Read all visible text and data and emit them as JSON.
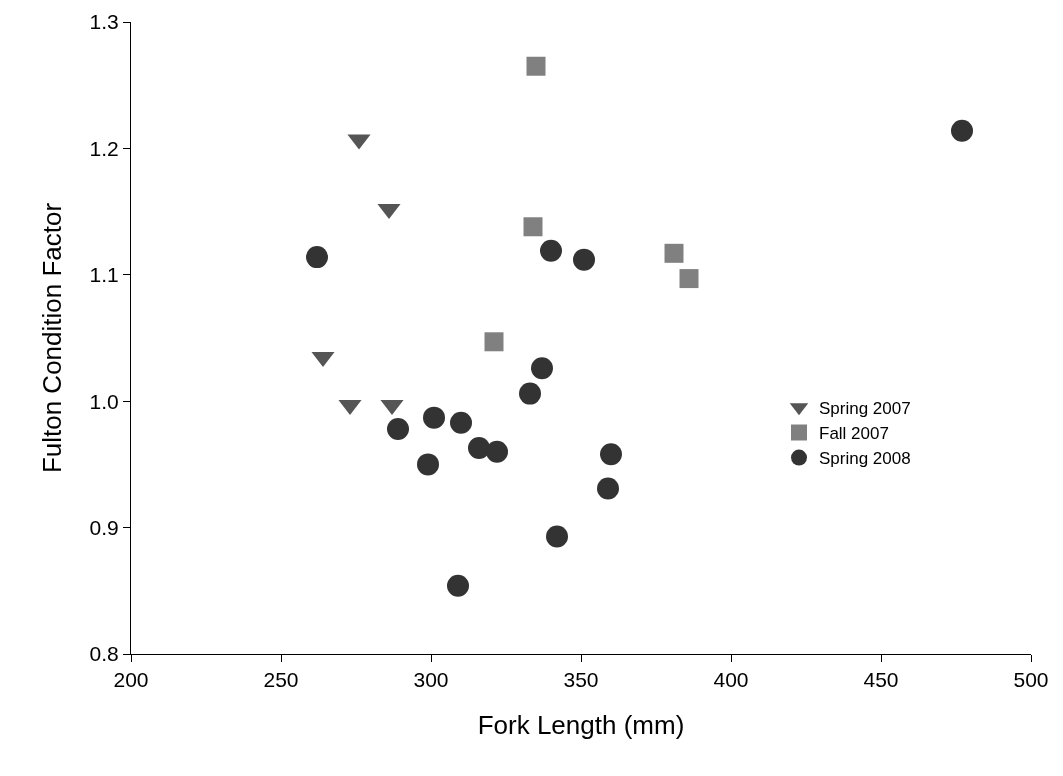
{
  "chart_data": {
    "type": "scatter",
    "xlabel": "Fork Length (mm)",
    "ylabel": "Fulton Condition Factor",
    "xlim": [
      200,
      500
    ],
    "xticks": [
      200,
      250,
      300,
      350,
      400,
      450,
      500
    ],
    "ylim": [
      0.8,
      1.3
    ],
    "yticks": [
      {
        "value": 0.8,
        "label": "0.8"
      },
      {
        "value": 0.9,
        "label": "0.9"
      },
      {
        "value": 1.0,
        "label": "1.0"
      },
      {
        "value": 1.1,
        "label": "1.1"
      },
      {
        "value": 1.2,
        "label": "1.2"
      },
      {
        "value": 1.3,
        "label": "1.3"
      }
    ],
    "grid": false,
    "legend": "right",
    "series": [
      {
        "name": "Spring 2007",
        "color": "#555555",
        "marker": "triangle",
        "x": [
          276,
          286,
          264,
          273,
          287
        ],
        "values": [
          1.207,
          1.152,
          1.035,
          0.997,
          0.997
        ]
      },
      {
        "name": "Fall 2007",
        "color": "#808080",
        "marker": "square",
        "x": [
          335,
          334,
          381,
          386,
          321
        ],
        "values": [
          1.265,
          1.138,
          1.117,
          1.097,
          1.047
        ]
      },
      {
        "name": "Spring 2008",
        "color": "#333333",
        "marker": "circle",
        "x": [
          477,
          262,
          340,
          351,
          337,
          333,
          301,
          310,
          289,
          316,
          322,
          299,
          360,
          359,
          342,
          309
        ],
        "values": [
          1.214,
          1.114,
          1.119,
          1.112,
          1.026,
          1.006,
          0.987,
          0.983,
          0.978,
          0.963,
          0.96,
          0.95,
          0.958,
          0.931,
          0.893,
          0.854
        ]
      }
    ]
  }
}
